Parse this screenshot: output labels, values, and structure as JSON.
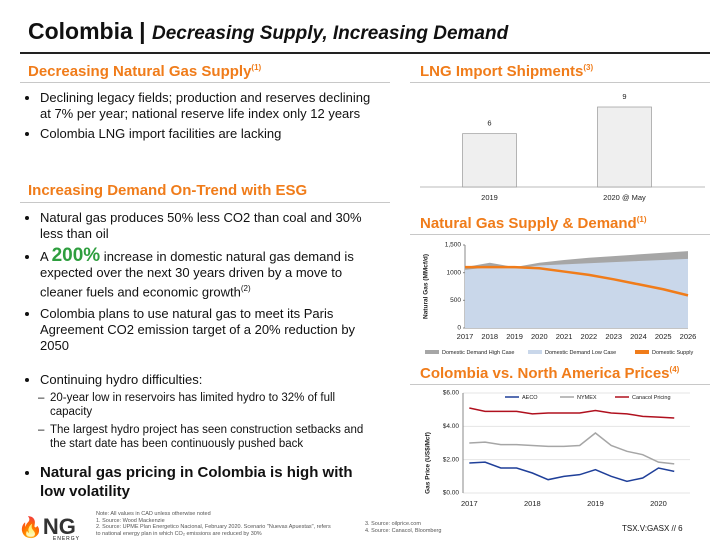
{
  "title": "Colombia",
  "subtitle": "Decreasing Supply, Increasing Demand",
  "supply": {
    "heading": "Decreasing Natural Gas Supply",
    "note": "(1)",
    "bullets": [
      "Declining legacy fields; production and reserves declining at 7% per year; national reserve life index only 12 years",
      "Colombia LNG import facilities are lacking"
    ]
  },
  "demand": {
    "heading": "Increasing Demand On-Trend with ESG",
    "bullet1": "Natural gas produces 50% less CO2 than coal and 30% less than oil",
    "highlight": {
      "pre": "A ",
      "em": "200%",
      "post": " increase in domestic natural gas demand is expected over the next 30 years driven by a move to cleaner fuels and economic growth",
      "note": "(2)"
    },
    "bullet3": "Colombia plans to use natural gas to meet its Paris Agreement CO2 emission target of a 20% reduction by 2050",
    "hydro": {
      "text": "Continuing hydro difficulties:",
      "sub": [
        "20-year low in reservoirs has limited hydro to 32% of full capacity",
        "The largest hydro project has seen construction setbacks and the start date has been continuously pushed back"
      ]
    },
    "closing": "Natural gas pricing in Colombia is high with low volatility"
  },
  "chart_data": [
    {
      "type": "bar",
      "title": "LNG Import Shipments",
      "title_note": "(3)",
      "categories": [
        "2019",
        "2020 @ May"
      ],
      "values": [
        6,
        9
      ],
      "color": "#efefef"
    },
    {
      "type": "area",
      "title": "Natural Gas Supply & Demand",
      "title_note": "(1)",
      "ylabel": "Natural Gas (MMcf/d)",
      "x": [
        2017,
        2018,
        2019,
        2020,
        2021,
        2022,
        2023,
        2024,
        2025,
        2026
      ],
      "xlim": [
        2017,
        2026
      ],
      "xticks": [
        2017,
        2018,
        2019,
        2020,
        2021,
        2022,
        2023,
        2024,
        2025,
        2026
      ],
      "ylim": [
        0,
        1500
      ],
      "yticks": [
        0,
        500,
        1000,
        {
          "value": 1500,
          "label": "1,500"
        }
      ],
      "series": [
        {
          "name": "Domestic Demand High Case",
          "color": "#a6a6a6",
          "kind": "area",
          "values": [
            1100,
            1180,
            1100,
            1180,
            1230,
            1270,
            1300,
            1330,
            1360,
            1390
          ]
        },
        {
          "name": "Domestic Demand Low Case",
          "color": "#c9d7ea",
          "kind": "area",
          "values": [
            1050,
            1100,
            1080,
            1130,
            1150,
            1170,
            1190,
            1210,
            1230,
            1250
          ]
        },
        {
          "name": "Domestic Supply",
          "color": "#f07c1a",
          "kind": "line",
          "values": [
            1100,
            1100,
            1100,
            1080,
            1020,
            960,
            880,
            790,
            700,
            590
          ]
        }
      ]
    },
    {
      "type": "line",
      "title": "Colombia vs. North America Prices",
      "title_note": "(4)",
      "ylabel": "Gas Price (US$/Mcf)",
      "x": [
        2017,
        2017.25,
        2017.5,
        2017.75,
        2018,
        2018.25,
        2018.5,
        2018.75,
        2019,
        2019.25,
        2019.5,
        2019.75,
        2020,
        2020.25
      ],
      "xlim": [
        2016.9,
        2020.5
      ],
      "xticks": [
        2017,
        2018,
        2019,
        2020
      ],
      "ylim": [
        0,
        6
      ],
      "yticks": [
        {
          "value": 0,
          "label": "$0.00"
        },
        {
          "value": 2,
          "label": "$2.00"
        },
        {
          "value": 4,
          "label": "$4.00"
        },
        {
          "value": 6,
          "label": "$6.00"
        }
      ],
      "series": [
        {
          "name": "AECO",
          "color": "#1f3f99",
          "values": [
            1.8,
            1.85,
            1.5,
            1.5,
            1.2,
            0.8,
            1.0,
            1.1,
            1.4,
            1.0,
            0.7,
            0.9,
            1.5,
            1.3
          ]
        },
        {
          "name": "NYMEX",
          "color": "#a6a6a6",
          "values": [
            3.0,
            3.05,
            2.9,
            2.9,
            2.85,
            2.8,
            2.8,
            2.85,
            3.6,
            2.85,
            2.5,
            2.3,
            1.85,
            1.75
          ]
        },
        {
          "name": "Canacol Pricing",
          "color": "#b0101e",
          "values": [
            5.1,
            4.9,
            4.9,
            4.9,
            4.75,
            4.8,
            4.8,
            4.8,
            4.95,
            4.8,
            4.75,
            4.6,
            4.55,
            4.5
          ]
        }
      ]
    }
  ],
  "footer": {
    "notes": [
      "Note: All values in CAD unless otherwise noted",
      "1.  Source: Wood Mackenzie",
      "2.  Source: UPME Plan Energetico Nacional, February 2020. Scenario \"Nuevas Apuestas\", refers to national energy plan in which CO₂ emissions are reduced by 30%",
      "3.  Source: oilprice.com",
      "4.  Source: Canacol, Bloomberg"
    ],
    "logo": "NG",
    "logo_sub": "ENERGY",
    "page": "TSX.V:GASX // 6"
  }
}
